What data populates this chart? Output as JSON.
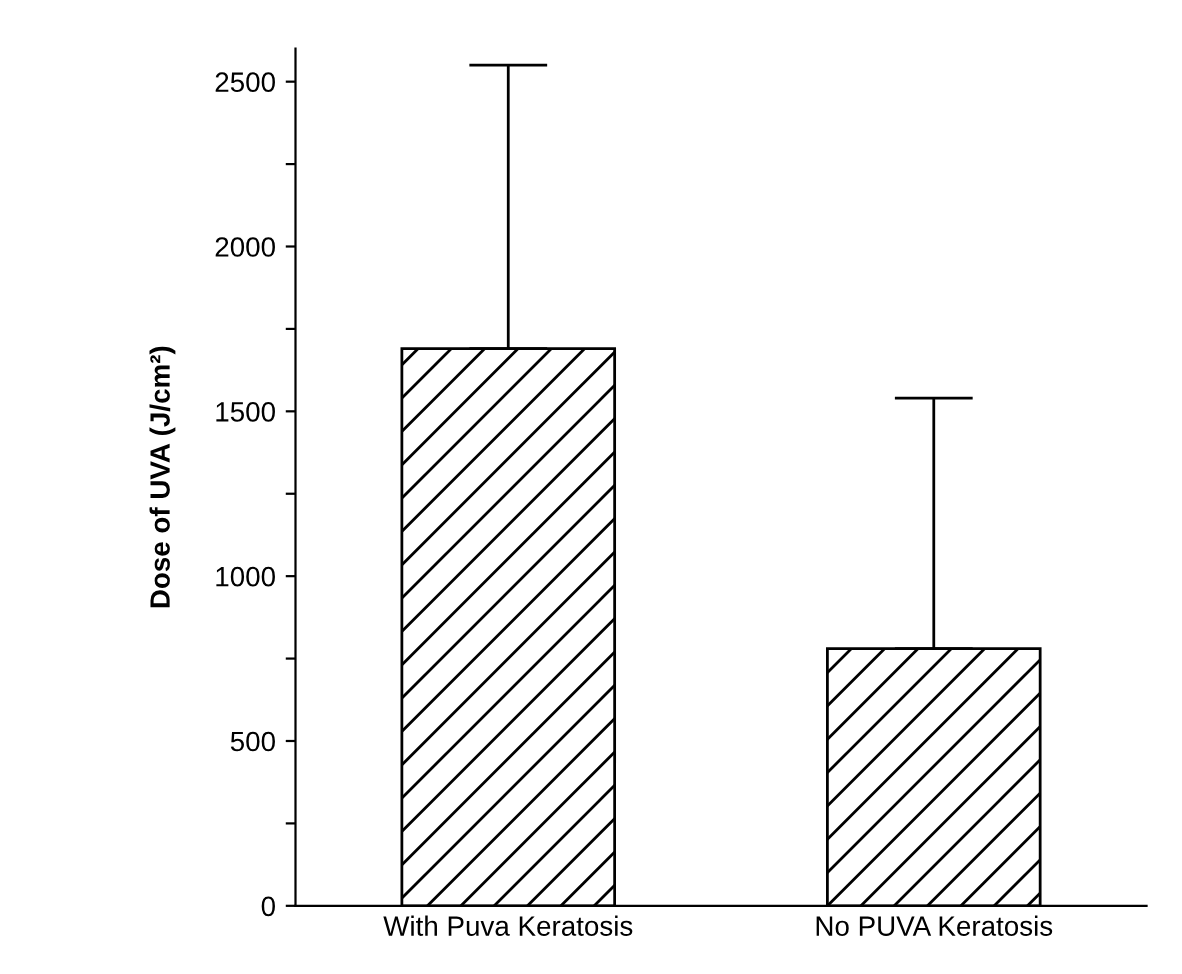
{
  "chart_data": {
    "type": "bar",
    "ylabel": "Dose of UVA (J/cm²)",
    "categories": [
      "With Puva Keratosis",
      "No PUVA Keratosis"
    ],
    "values": [
      1690,
      780
    ],
    "errors": [
      [
        1690,
        2550
      ],
      [
        780,
        1540
      ]
    ],
    "color": "#000000",
    "ylim": [
      0,
      2600
    ],
    "yticks": [
      0,
      {
        "value": 250,
        "label": null
      },
      500,
      {
        "value": 750,
        "label": null
      },
      1000,
      {
        "value": 1250,
        "label": null
      },
      1500,
      {
        "value": 1750,
        "label": null
      },
      2000,
      {
        "value": 2250,
        "label": null
      },
      2500
    ],
    "grid": false
  }
}
